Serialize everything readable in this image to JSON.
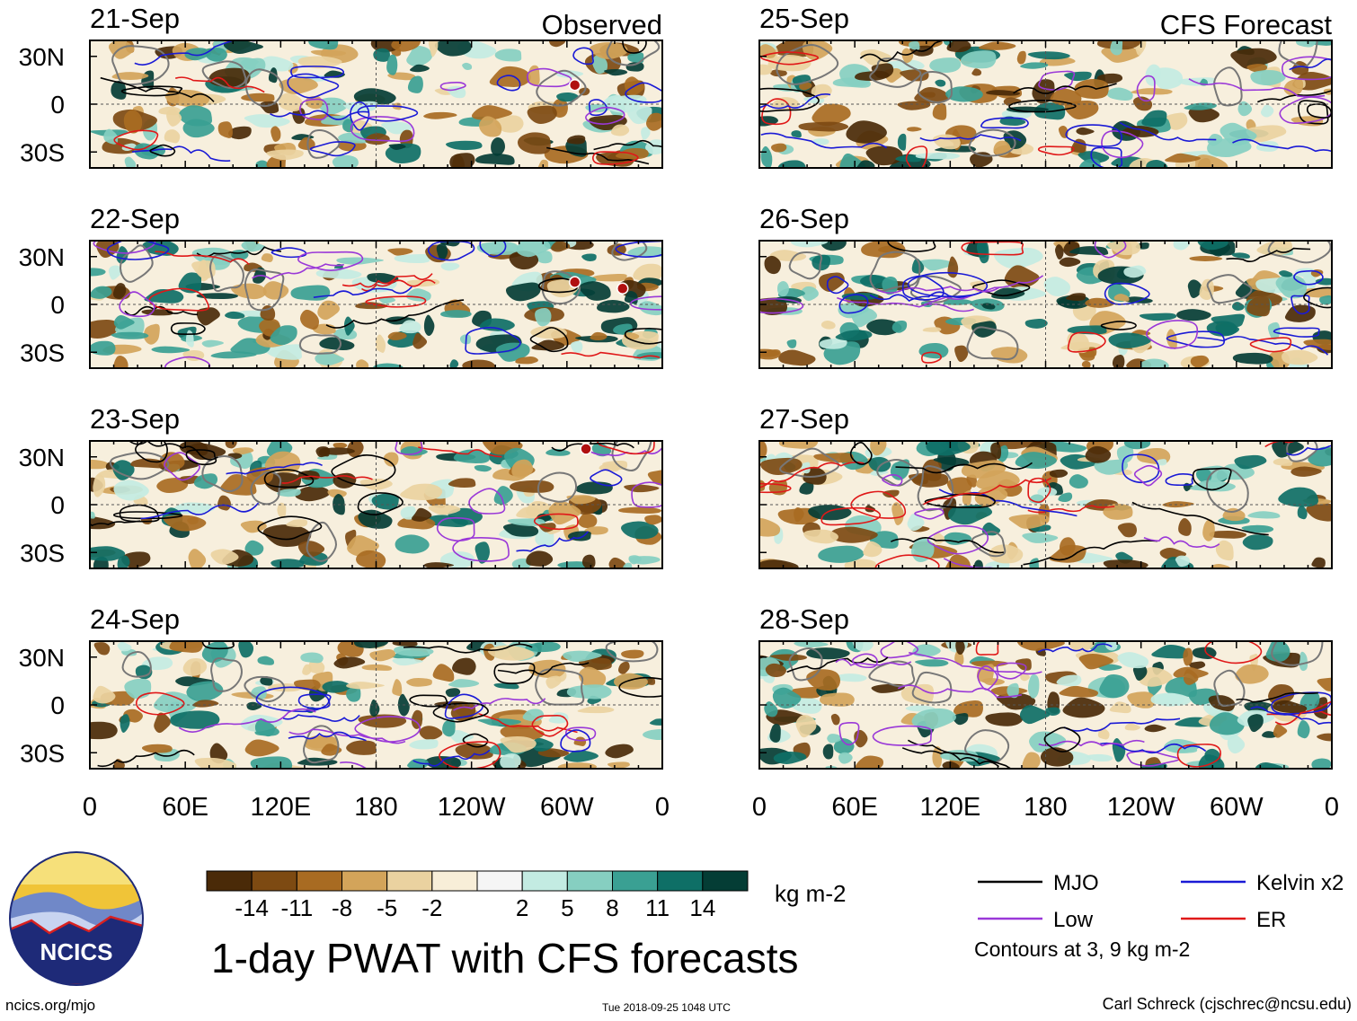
{
  "title": "1-day PWAT with CFS forecasts",
  "footer": {
    "left": "ncics.org/mjo",
    "middle": "Tue 2018-09-25 1048 UTC",
    "right": "Carl Schreck (cjschrec@ncsu.edu)"
  },
  "logo": {
    "text": "NCICS",
    "icon": "ncics-logo-icon"
  },
  "colorbar": {
    "units": "kg m-2",
    "ticks": [
      "-14",
      "-11",
      "-8",
      "-5",
      "-2",
      "2",
      "5",
      "8",
      "11",
      "14"
    ],
    "colors": [
      "#4a2a08",
      "#7d4a12",
      "#a86b22",
      "#d3a45a",
      "#ead2a0",
      "#f8eed8",
      "#f5f5f5",
      "#c3ebe2",
      "#86cfc1",
      "#3aa093",
      "#0e6f66",
      "#043d35"
    ]
  },
  "legend": {
    "items": [
      {
        "label": "MJO",
        "color": "#000000"
      },
      {
        "label": "Kelvin x2",
        "color": "#1a1ad6"
      },
      {
        "label": "Low",
        "color": "#9a38d8"
      },
      {
        "label": "ER",
        "color": "#e01818"
      }
    ],
    "note": "Contours at 3, 9 kg m-2"
  },
  "chart_data": {
    "type": "heatmap",
    "variable": "1-day PWAT anomaly",
    "units": "kg m-2",
    "columns": [
      {
        "heading": "Observed",
        "panels": [
          "21-Sep",
          "22-Sep",
          "23-Sep",
          "24-Sep"
        ]
      },
      {
        "heading": "CFS Forecast",
        "panels": [
          "25-Sep",
          "26-Sep",
          "27-Sep",
          "28-Sep"
        ]
      }
    ],
    "x_ticks": [
      "0",
      "60E",
      "120E",
      "180",
      "120W",
      "60W",
      "0"
    ],
    "x_range_deg": [
      0,
      360
    ],
    "y_ticks": [
      "30N",
      "0",
      "30S"
    ],
    "y_range_deg": [
      -40,
      40
    ],
    "storm_markers": [
      {
        "panel": "21-Sep",
        "lon": 305,
        "lat": 12
      },
      {
        "panel": "22-Sep",
        "lon": 305,
        "lat": 14
      },
      {
        "panel": "22-Sep",
        "lon": 335,
        "lat": 10
      },
      {
        "panel": "23-Sep",
        "lon": 312,
        "lat": 35
      }
    ]
  }
}
